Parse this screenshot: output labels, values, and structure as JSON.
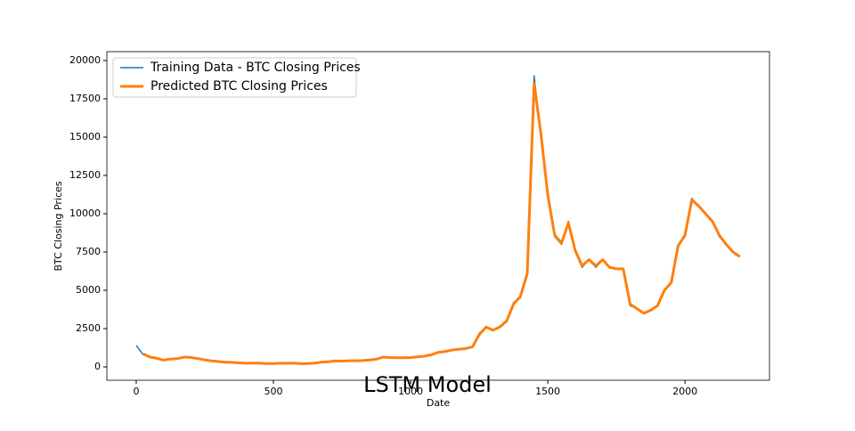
{
  "chart_data": {
    "type": "line",
    "title": "LSTM Model",
    "x_label": "Date",
    "y_label": "BTC Closing Prices",
    "x": [
      0,
      25,
      50,
      75,
      100,
      125,
      150,
      175,
      200,
      225,
      250,
      275,
      300,
      325,
      350,
      375,
      400,
      425,
      450,
      475,
      500,
      525,
      550,
      575,
      600,
      625,
      650,
      675,
      700,
      725,
      750,
      775,
      800,
      825,
      850,
      875,
      900,
      925,
      950,
      975,
      1000,
      1025,
      1050,
      1075,
      1100,
      1125,
      1150,
      1175,
      1200,
      1225,
      1250,
      1275,
      1300,
      1325,
      1350,
      1375,
      1400,
      1425,
      1450,
      1475,
      1500,
      1525,
      1550,
      1575,
      1600,
      1625,
      1650,
      1675,
      1700,
      1725,
      1750,
      1775,
      1800,
      1825,
      1850,
      1875,
      1900,
      1925,
      1950,
      1975,
      2000,
      2025,
      2050,
      2075,
      2100,
      2125,
      2150,
      2175,
      2200
    ],
    "series": [
      {
        "name": "Training Data - BTC Closing Prices",
        "color": "#1f77b4",
        "width": 1.5,
        "values": [
          1400,
          800,
          650,
          550,
          450,
          500,
          550,
          650,
          600,
          550,
          450,
          400,
          350,
          300,
          300,
          250,
          250,
          250,
          250,
          220,
          220,
          230,
          250,
          250,
          200,
          220,
          250,
          300,
          350,
          400,
          380,
          400,
          400,
          400,
          450,
          500,
          650,
          600,
          600,
          600,
          600,
          650,
          700,
          800,
          950,
          1000,
          1100,
          1150,
          1200,
          1300,
          2200,
          2600,
          2400,
          2600,
          3000,
          4200,
          4500,
          6000,
          19000,
          15000,
          11000,
          8500,
          8000,
          9500,
          7500,
          6500,
          7000,
          6500,
          7000,
          6500,
          6400,
          6400,
          4000,
          3800,
          3500,
          3700,
          4000,
          5000,
          5500,
          8000,
          8500,
          11000,
          10500,
          10000,
          9500,
          8500,
          8000,
          7500,
          7200
        ]
      },
      {
        "name": "Predicted BTC Closing Prices",
        "color": "#ff7f0e",
        "width": 3,
        "values": [
          null,
          850,
          640,
          560,
          440,
          510,
          540,
          640,
          610,
          540,
          460,
          390,
          350,
          310,
          290,
          260,
          240,
          250,
          250,
          220,
          220,
          230,
          240,
          250,
          210,
          220,
          250,
          300,
          340,
          390,
          380,
          400,
          400,
          410,
          450,
          500,
          640,
          610,
          600,
          600,
          610,
          650,
          700,
          790,
          940,
          1000,
          1100,
          1150,
          1200,
          1300,
          2100,
          2600,
          2400,
          2600,
          3000,
          4100,
          4600,
          6100,
          18500,
          15200,
          11200,
          8600,
          8100,
          9400,
          7600,
          6600,
          7000,
          6600,
          7000,
          6500,
          6400,
          6400,
          4100,
          3800,
          3500,
          3700,
          4000,
          5000,
          5500,
          7900,
          8600,
          10900,
          10500,
          10000,
          9500,
          8600,
          8000,
          7500,
          7200
        ]
      }
    ],
    "xlim": [
      -107,
      2308
    ],
    "ylim": [
      -872,
      20581
    ],
    "xticks": [
      0,
      500,
      1000,
      1500,
      2000
    ],
    "yticks": [
      0,
      2500,
      5000,
      7500,
      10000,
      12500,
      15000,
      17500,
      20000
    ],
    "legend": "upper left"
  }
}
